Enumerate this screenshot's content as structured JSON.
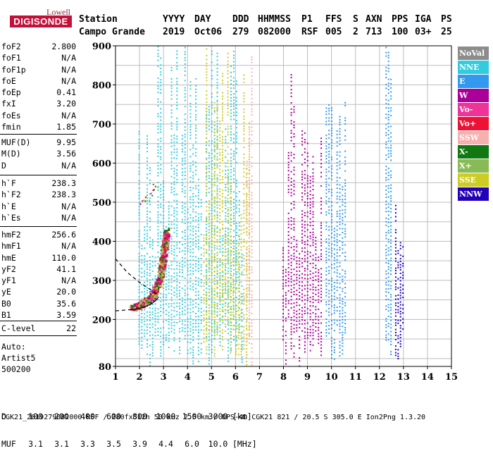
{
  "logo": {
    "top": "Lowell",
    "main": "DIGISONDE"
  },
  "header": {
    "labels": [
      "Station",
      "YYYY",
      "DAY",
      "DDD",
      "HHMMSS",
      "P1",
      "FFS",
      "S",
      "AXN",
      "PPS",
      "IGA",
      "PS"
    ],
    "values": [
      "Campo Grande",
      "2019",
      "Oct06",
      "279",
      "082000",
      "RSF",
      "005",
      "2",
      "713",
      "100",
      "03+",
      "25"
    ]
  },
  "params": {
    "group1": [
      {
        "name": "foF2",
        "value": "2.800"
      },
      {
        "name": "foF1",
        "value": "N/A"
      },
      {
        "name": "foF1p",
        "value": "N/A"
      },
      {
        "name": "foE",
        "value": "N/A"
      },
      {
        "name": "foEp",
        "value": "0.41"
      },
      {
        "name": "fxI",
        "value": "3.20"
      },
      {
        "name": "foEs",
        "value": "N/A"
      },
      {
        "name": "fmin",
        "value": "1.85"
      }
    ],
    "group2": [
      {
        "name": "MUF(D)",
        "value": "9.95"
      },
      {
        "name": "M(D)",
        "value": "3.56"
      },
      {
        "name": "D",
        "value": "N/A"
      }
    ],
    "group3": [
      {
        "name": "h`F",
        "value": "238.3"
      },
      {
        "name": "h`F2",
        "value": "238.3"
      },
      {
        "name": "h`E",
        "value": "N/A"
      },
      {
        "name": "h`Es",
        "value": "N/A"
      }
    ],
    "group4": [
      {
        "name": "hmF2",
        "value": "256.6"
      },
      {
        "name": "hmF1",
        "value": "N/A"
      },
      {
        "name": "hmE",
        "value": "110.0"
      },
      {
        "name": "yF2",
        "value": "41.1"
      },
      {
        "name": "yF1",
        "value": "N/A"
      },
      {
        "name": "yE",
        "value": "20.0"
      },
      {
        "name": "B0",
        "value": "35.6"
      },
      {
        "name": "B1",
        "value": "3.59"
      }
    ],
    "group5": [
      {
        "name": "C-level",
        "value": "22"
      }
    ]
  },
  "auto": {
    "line1": "Auto:",
    "line2": "Artist5",
    "line3": "500200"
  },
  "legend": [
    {
      "label": "NoVal",
      "color": "#8c8c8c"
    },
    {
      "label": "NNE",
      "color": "#33ccdd"
    },
    {
      "label": "E",
      "color": "#3399ee"
    },
    {
      "label": "W",
      "color": "#aa0099"
    },
    {
      "label": "Vo-",
      "color": "#ee3399"
    },
    {
      "label": "Vo+",
      "color": "#ee1133"
    },
    {
      "label": "SSW",
      "color": "#f5b0b0"
    },
    {
      "label": "X-",
      "color": "#117711"
    },
    {
      "label": "X+",
      "color": "#88bb55"
    },
    {
      "label": "SSE",
      "color": "#cccc22"
    },
    {
      "label": "NNW",
      "color": "#2200bb"
    }
  ],
  "dtable": {
    "d_label": "D",
    "d_values": [
      "100",
      "200",
      "400",
      "600",
      "800",
      "1000",
      "1500",
      "3000"
    ],
    "d_unit": "[km]",
    "muf_label": "MUF",
    "muf_values": [
      "3.1",
      "3.1",
      "3.3",
      "3.5",
      "3.9",
      "4.4",
      "6.0",
      "10.0"
    ],
    "muf_unit": "[MHz]"
  },
  "footer": "CGK21_2019279082000.RSF / 280fx512h 50 kHz 2.5 km / DPS-4D CGK21 821 / 20.5 S 305.0 E Ion2Png 1.3.20",
  "chart_data": {
    "type": "scatter",
    "title": "",
    "xlabel": "",
    "ylabel": "",
    "xlim": [
      1,
      15
    ],
    "ylim": [
      80,
      900
    ],
    "xticks": [
      "1",
      "2",
      "3",
      "4",
      "5",
      "6",
      "7",
      "8",
      "9",
      "10",
      "11",
      "12",
      "13",
      "14",
      "15"
    ],
    "yticks": [
      "80",
      "200",
      "300",
      "400",
      "500",
      "600",
      "700",
      "800",
      "900"
    ],
    "grid": true,
    "bands": [
      {
        "name": "NNE",
        "color": "#33ccdd",
        "fmin": 1.9,
        "fmax": 4.6
      },
      {
        "name": "NNE",
        "color": "#33ccdd",
        "fmin": 4.7,
        "fmax": 6.3
      },
      {
        "name": "SSE",
        "color": "#cccc22",
        "fmin": 4.6,
        "fmax": 6.6
      },
      {
        "name": "SSW",
        "color": "#f5b0b0",
        "fmin": 6.4,
        "fmax": 6.7
      },
      {
        "name": "W",
        "color": "#aa0099",
        "fmin": 7.9,
        "fmax": 9.6
      },
      {
        "name": "E",
        "color": "#3399ee",
        "fmin": 9.7,
        "fmax": 10.6
      },
      {
        "name": "NNW",
        "color": "#2200bb",
        "fmin": 12.6,
        "fmax": 13.0
      },
      {
        "name": "E",
        "color": "#3399ee",
        "fmin": 12.2,
        "fmax": 12.5
      }
    ],
    "trace_F": [
      {
        "f": 1.7,
        "h": 232
      },
      {
        "f": 1.9,
        "h": 236
      },
      {
        "f": 2.1,
        "h": 242
      },
      {
        "f": 2.3,
        "h": 250
      },
      {
        "f": 2.5,
        "h": 262
      },
      {
        "f": 2.65,
        "h": 278
      },
      {
        "f": 2.8,
        "h": 300
      },
      {
        "f": 2.9,
        "h": 330
      },
      {
        "f": 2.98,
        "h": 365
      },
      {
        "f": 3.05,
        "h": 400
      },
      {
        "f": 3.1,
        "h": 430
      }
    ],
    "trace_upper": [
      {
        "f": 2.1,
        "h": 500
      },
      {
        "f": 2.3,
        "h": 510
      },
      {
        "f": 2.5,
        "h": 525
      },
      {
        "f": 2.65,
        "h": 540
      }
    ],
    "profile_solid": [
      {
        "f": 1.6,
        "h": 225
      },
      {
        "f": 1.9,
        "h": 227
      },
      {
        "f": 2.2,
        "h": 232
      },
      {
        "f": 2.5,
        "h": 240
      },
      {
        "f": 2.7,
        "h": 250
      },
      {
        "f": 2.8,
        "h": 258
      }
    ],
    "profile_dashed_upper": [
      {
        "f": 1.0,
        "h": 355
      },
      {
        "f": 1.5,
        "h": 320
      },
      {
        "f": 2.0,
        "h": 295
      },
      {
        "f": 2.5,
        "h": 275
      },
      {
        "f": 2.8,
        "h": 262
      }
    ],
    "profile_dashed_lower": [
      {
        "f": 1.0,
        "h": 222
      },
      {
        "f": 1.6,
        "h": 225
      }
    ]
  }
}
